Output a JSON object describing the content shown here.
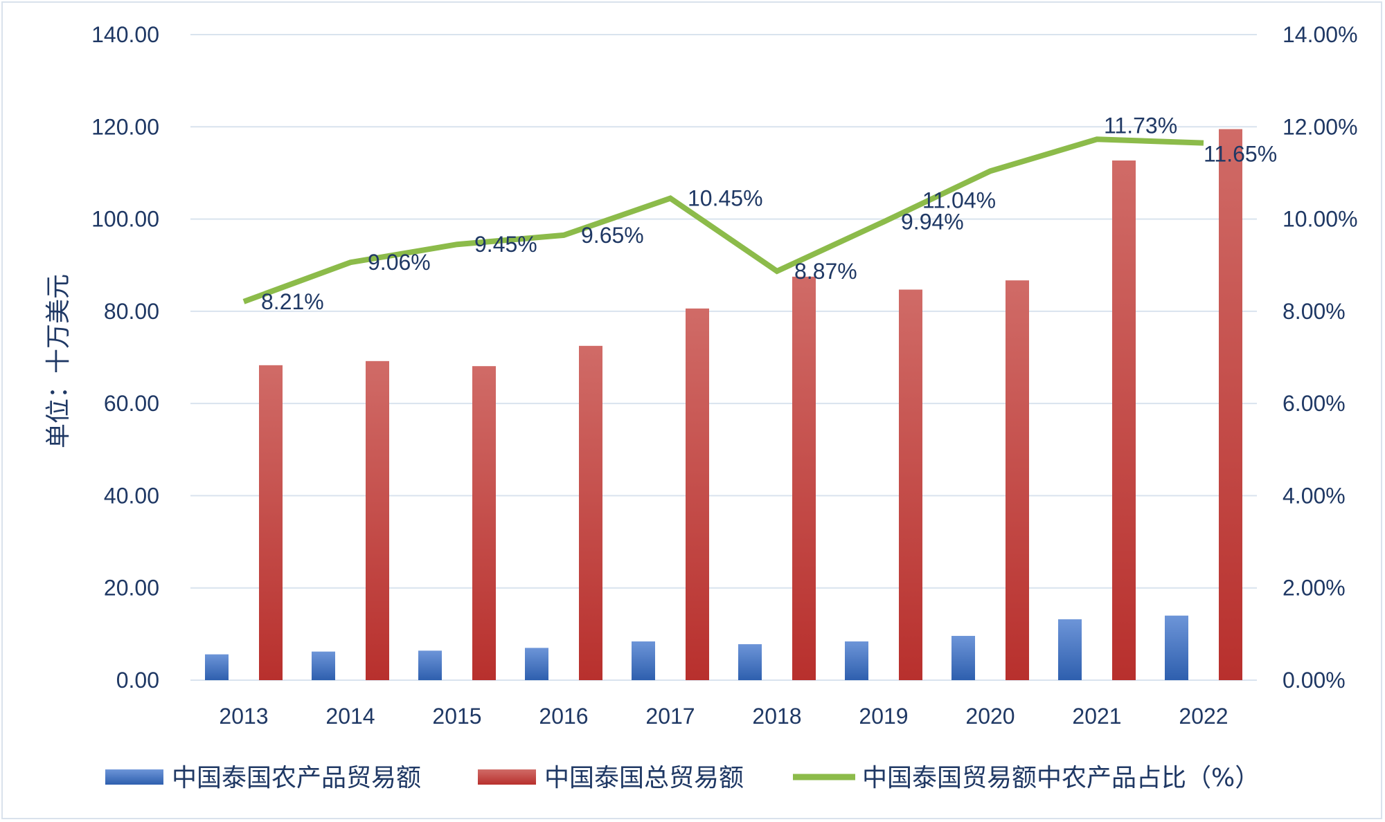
{
  "chart_data": {
    "type": "bar",
    "categories": [
      "2013",
      "2014",
      "2015",
      "2016",
      "2017",
      "2018",
      "2019",
      "2020",
      "2021",
      "2022"
    ],
    "series": [
      {
        "name": "中国泰国农产品贸易额",
        "type": "bar",
        "axis": "left",
        "color": "#4472c4",
        "values": [
          5.6,
          6.2,
          6.4,
          7.0,
          8.4,
          7.8,
          8.4,
          9.6,
          13.2,
          14.0
        ]
      },
      {
        "name": "中国泰国总贸易额",
        "type": "bar",
        "axis": "left",
        "color": "#c0504d",
        "values": [
          68.3,
          69.2,
          68.1,
          72.5,
          80.6,
          87.5,
          84.7,
          86.7,
          112.7,
          119.5
        ]
      },
      {
        "name": "中国泰国贸易额中农产品占比（%）",
        "type": "line",
        "axis": "right",
        "color": "#8cbb4a",
        "values": [
          8.21,
          9.06,
          9.45,
          9.65,
          10.45,
          8.87,
          9.94,
          11.04,
          11.73,
          11.65
        ],
        "labels": [
          "8.21%",
          "9.06%",
          "9.45%",
          "9.65%",
          "10.45%",
          "8.87%",
          "9.94%",
          "11.04%",
          "11.73%",
          "11.65%"
        ]
      }
    ],
    "ylabel": "单位：十万美元",
    "ylim": [
      0,
      140
    ],
    "y_ticks": [
      "0.00",
      "20.00",
      "40.00",
      "60.00",
      "80.00",
      "100.00",
      "120.00",
      "140.00"
    ],
    "y2lim": [
      0,
      14
    ],
    "y2_ticks": [
      "0.00%",
      "2.00%",
      "4.00%",
      "6.00%",
      "8.00%",
      "10.00%",
      "12.00%",
      "14.00%"
    ],
    "grid": true,
    "legend_position": "bottom"
  }
}
